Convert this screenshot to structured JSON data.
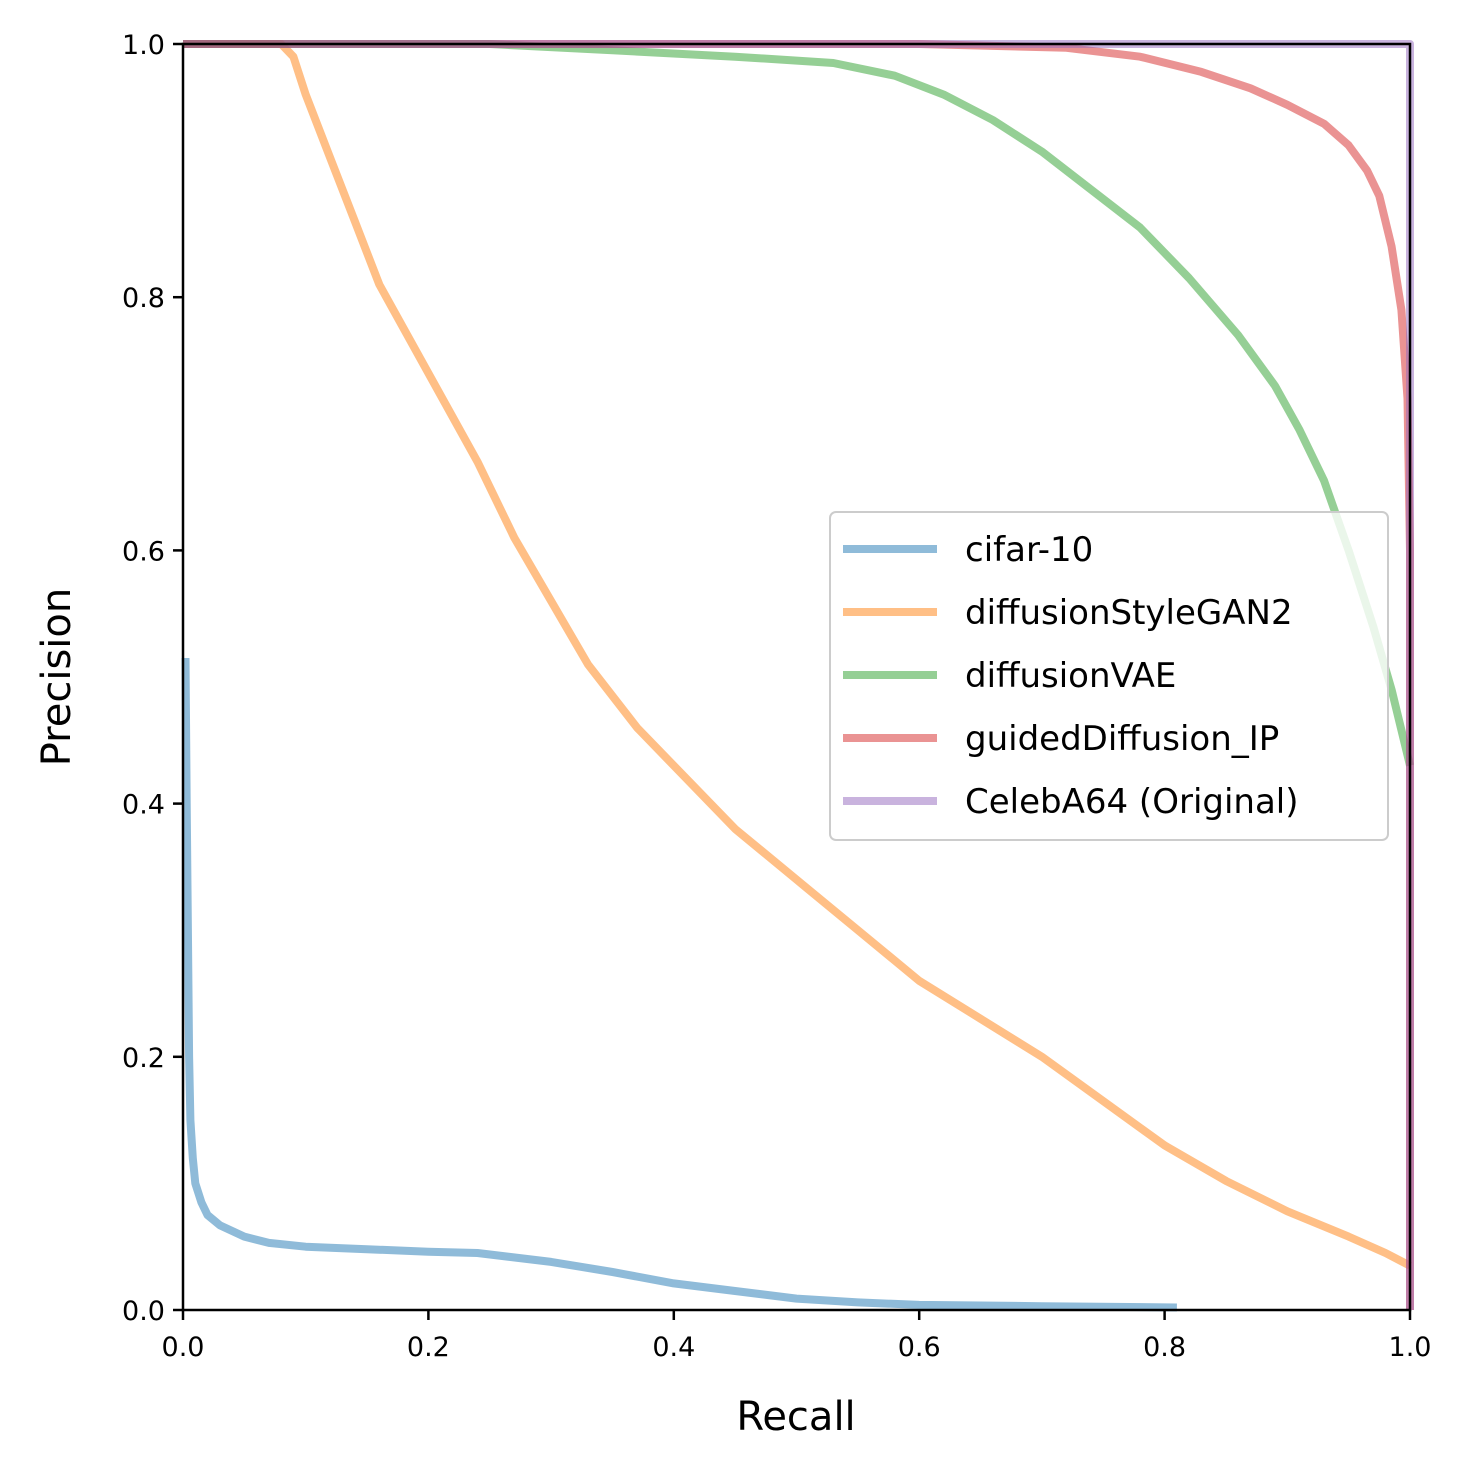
{
  "chart_data": {
    "type": "line",
    "title": "",
    "xlabel": "Recall",
    "ylabel": "Precision",
    "xlim": [
      0.0,
      1.0
    ],
    "ylim": [
      0.0,
      1.0
    ],
    "xticks": [
      "0.0",
      "0.2",
      "0.4",
      "0.6",
      "0.8",
      "1.0"
    ],
    "yticks": [
      "0.0",
      "0.2",
      "0.4",
      "0.6",
      "0.8",
      "1.0"
    ],
    "grid": false,
    "legend_position": "center-right",
    "series": [
      {
        "name": "cifar-10",
        "color": "#1f77b4",
        "points": [
          [
            0.002,
            0.515
          ],
          [
            0.003,
            0.4
          ],
          [
            0.004,
            0.3
          ],
          [
            0.005,
            0.2
          ],
          [
            0.006,
            0.15
          ],
          [
            0.008,
            0.12
          ],
          [
            0.01,
            0.1
          ],
          [
            0.015,
            0.085
          ],
          [
            0.02,
            0.075
          ],
          [
            0.03,
            0.067
          ],
          [
            0.05,
            0.058
          ],
          [
            0.07,
            0.053
          ],
          [
            0.1,
            0.05
          ],
          [
            0.15,
            0.048
          ],
          [
            0.2,
            0.046
          ],
          [
            0.24,
            0.045
          ],
          [
            0.3,
            0.038
          ],
          [
            0.35,
            0.03
          ],
          [
            0.4,
            0.021
          ],
          [
            0.45,
            0.015
          ],
          [
            0.5,
            0.009
          ],
          [
            0.55,
            0.006
          ],
          [
            0.6,
            0.004
          ],
          [
            0.7,
            0.003
          ],
          [
            0.81,
            0.002
          ]
        ]
      },
      {
        "name": "diffusionStyleGAN2",
        "color": "#ff7f0e",
        "points": [
          [
            0.0,
            1.0
          ],
          [
            0.08,
            1.0
          ],
          [
            0.09,
            0.99
          ],
          [
            0.1,
            0.96
          ],
          [
            0.12,
            0.91
          ],
          [
            0.14,
            0.86
          ],
          [
            0.16,
            0.81
          ],
          [
            0.2,
            0.74
          ],
          [
            0.24,
            0.67
          ],
          [
            0.27,
            0.61
          ],
          [
            0.3,
            0.56
          ],
          [
            0.33,
            0.51
          ],
          [
            0.37,
            0.46
          ],
          [
            0.4,
            0.43
          ],
          [
            0.45,
            0.38
          ],
          [
            0.5,
            0.34
          ],
          [
            0.55,
            0.3
          ],
          [
            0.6,
            0.26
          ],
          [
            0.65,
            0.23
          ],
          [
            0.7,
            0.2
          ],
          [
            0.75,
            0.165
          ],
          [
            0.8,
            0.13
          ],
          [
            0.85,
            0.102
          ],
          [
            0.9,
            0.078
          ],
          [
            0.95,
            0.058
          ],
          [
            0.98,
            0.045
          ],
          [
            1.0,
            0.035
          ]
        ]
      },
      {
        "name": "diffusionVAE",
        "color": "#2ca02c",
        "points": [
          [
            0.0,
            1.0
          ],
          [
            0.25,
            1.0
          ],
          [
            0.35,
            0.995
          ],
          [
            0.45,
            0.99
          ],
          [
            0.53,
            0.985
          ],
          [
            0.58,
            0.975
          ],
          [
            0.62,
            0.96
          ],
          [
            0.66,
            0.94
          ],
          [
            0.7,
            0.915
          ],
          [
            0.74,
            0.885
          ],
          [
            0.78,
            0.855
          ],
          [
            0.82,
            0.815
          ],
          [
            0.86,
            0.77
          ],
          [
            0.89,
            0.73
          ],
          [
            0.91,
            0.695
          ],
          [
            0.93,
            0.655
          ],
          [
            0.95,
            0.6
          ],
          [
            0.97,
            0.54
          ],
          [
            0.985,
            0.49
          ],
          [
            0.995,
            0.45
          ],
          [
            1.0,
            0.43
          ]
        ]
      },
      {
        "name": "guidedDiffusion_IP",
        "color": "#d62728",
        "points": [
          [
            0.0,
            1.0
          ],
          [
            0.6,
            1.0
          ],
          [
            0.72,
            0.997
          ],
          [
            0.78,
            0.99
          ],
          [
            0.83,
            0.978
          ],
          [
            0.87,
            0.965
          ],
          [
            0.9,
            0.952
          ],
          [
            0.93,
            0.937
          ],
          [
            0.95,
            0.92
          ],
          [
            0.965,
            0.9
          ],
          [
            0.975,
            0.88
          ],
          [
            0.985,
            0.84
          ],
          [
            0.993,
            0.79
          ],
          [
            0.998,
            0.72
          ],
          [
            1.0,
            0.6
          ],
          [
            1.0,
            0.0
          ]
        ]
      },
      {
        "name": "CelebA64 (Original)",
        "color": "#9467bd",
        "points": [
          [
            0.0,
            1.0
          ],
          [
            1.0,
            1.0
          ],
          [
            1.0,
            0.0
          ]
        ]
      }
    ]
  }
}
